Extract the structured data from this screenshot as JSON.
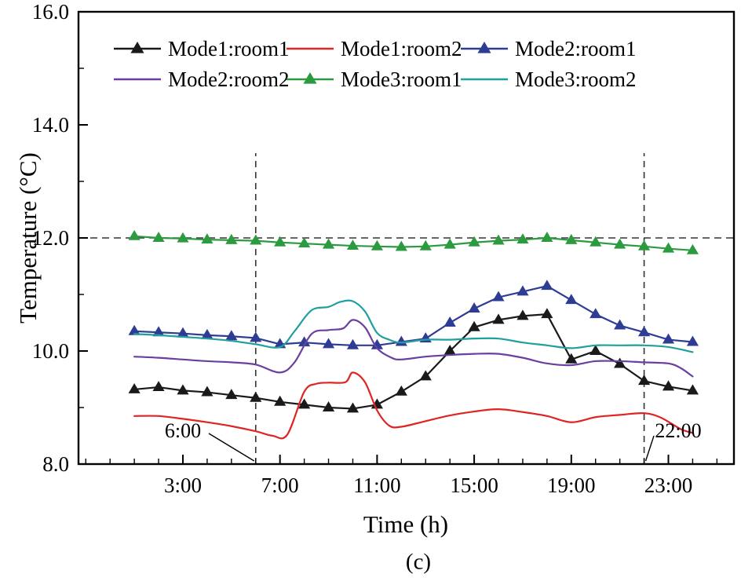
{
  "caption": "(c)",
  "colors": {
    "axis": "#000000",
    "reference_dash": "#333333",
    "mode1_room1": "#1a1a1a",
    "mode1_room2": "#e02424",
    "mode2_room1": "#2f3c94",
    "mode2_room2": "#6a3fa0",
    "mode3_room1": "#2c9b3f",
    "mode3_room2": "#1f9f9f"
  },
  "chart_data": {
    "type": "line",
    "title": "",
    "xlabel": "Time (h)",
    "ylabel": "Temperature (°C)",
    "xlim": [
      -1.3,
      25.7
    ],
    "ylim": [
      8,
      16
    ],
    "grid": false,
    "legend_position": "top-inside-two-rows",
    "x_major_ticks": [
      {
        "value": 3,
        "label": "3:00"
      },
      {
        "value": 7,
        "label": "7:00"
      },
      {
        "value": 11,
        "label": "11:00"
      },
      {
        "value": 15,
        "label": "15:00"
      },
      {
        "value": 19,
        "label": "19:00"
      },
      {
        "value": 23,
        "label": "23:00"
      }
    ],
    "x_minor_step": 1,
    "y_major_ticks": [
      {
        "value": 8,
        "label": "8.0"
      },
      {
        "value": 10,
        "label": "10.0"
      },
      {
        "value": 12,
        "label": "12.0"
      },
      {
        "value": 14,
        "label": "14.0"
      },
      {
        "value": 16,
        "label": "16.0"
      }
    ],
    "y_minor_step": 1,
    "reference_lines": {
      "horizontal": [
        {
          "y": 12.0
        }
      ],
      "vertical": [
        {
          "x": 6,
          "y_bottom": 8.0,
          "y_top": 13.5
        },
        {
          "x": 22,
          "y_bottom": 8.0,
          "y_top": 13.5
        }
      ]
    },
    "annotations": [
      {
        "text": "6:00",
        "target_hour": 6
      },
      {
        "text": "22:00",
        "target_hour": 22
      }
    ],
    "series": [
      {
        "name": "Mode1:room1",
        "color_key": "mode1_room1",
        "marker": "triangle",
        "smooth": false,
        "x": [
          1,
          2,
          3,
          4,
          5,
          6,
          7,
          8,
          9,
          10,
          11,
          12,
          13,
          14,
          15,
          16,
          17,
          18,
          19,
          20,
          21,
          22,
          23,
          24
        ],
        "y": [
          9.32,
          9.36,
          9.3,
          9.27,
          9.22,
          9.17,
          9.1,
          9.05,
          9.0,
          8.98,
          9.05,
          9.28,
          9.55,
          10.0,
          10.42,
          10.55,
          10.62,
          10.65,
          9.85,
          10.0,
          9.77,
          9.47,
          9.37,
          9.3
        ]
      },
      {
        "name": "Mode1:room2",
        "color_key": "mode1_room2",
        "marker": "none",
        "smooth": true,
        "x": [
          1,
          2,
          3,
          4,
          5,
          6,
          6.7,
          7.3,
          8,
          8.5,
          9,
          9.7,
          10,
          10.5,
          11,
          11.5,
          12,
          13,
          14,
          15,
          16,
          17,
          18,
          19,
          20,
          21,
          22,
          22.7,
          23.5,
          24
        ],
        "y": [
          8.85,
          8.85,
          8.8,
          8.74,
          8.67,
          8.58,
          8.5,
          8.52,
          9.28,
          9.42,
          9.44,
          9.45,
          9.62,
          9.45,
          8.95,
          8.68,
          8.66,
          8.76,
          8.86,
          8.93,
          8.97,
          8.92,
          8.85,
          8.74,
          8.83,
          8.87,
          8.9,
          8.82,
          8.62,
          8.55
        ]
      },
      {
        "name": "Mode2:room1",
        "color_key": "mode2_room1",
        "marker": "triangle",
        "smooth": false,
        "x": [
          1,
          2,
          3,
          4,
          5,
          6,
          7,
          8,
          9,
          10,
          11,
          12,
          13,
          14,
          15,
          16,
          17,
          18,
          19,
          20,
          21,
          22,
          23,
          24
        ],
        "y": [
          10.35,
          10.33,
          10.31,
          10.28,
          10.26,
          10.23,
          10.12,
          10.15,
          10.12,
          10.1,
          10.1,
          10.16,
          10.22,
          10.5,
          10.75,
          10.95,
          11.05,
          11.15,
          10.9,
          10.65,
          10.45,
          10.33,
          10.2,
          10.16
        ]
      },
      {
        "name": "Mode2:room2",
        "color_key": "mode2_room2",
        "marker": "none",
        "smooth": true,
        "x": [
          1,
          2,
          3,
          4,
          5,
          6,
          7,
          7.6,
          8.3,
          9,
          9.6,
          10,
          10.5,
          11,
          11.6,
          12,
          13,
          14,
          15,
          16,
          17,
          18,
          19,
          20,
          21,
          22,
          23,
          23.5,
          24
        ],
        "y": [
          9.9,
          9.88,
          9.85,
          9.82,
          9.8,
          9.76,
          9.62,
          9.8,
          10.3,
          10.37,
          10.4,
          10.55,
          10.42,
          10.05,
          9.88,
          9.85,
          9.9,
          9.93,
          9.95,
          9.95,
          9.88,
          9.78,
          9.75,
          9.82,
          9.82,
          9.8,
          9.78,
          9.7,
          9.55
        ]
      },
      {
        "name": "Mode3:room1",
        "color_key": "mode3_room1",
        "marker": "triangle",
        "smooth": false,
        "x": [
          1,
          2,
          3,
          4,
          5,
          6,
          7,
          8,
          9,
          10,
          11,
          12,
          13,
          14,
          15,
          16,
          17,
          18,
          19,
          20,
          21,
          22,
          23,
          24
        ],
        "y": [
          12.03,
          12.0,
          11.99,
          11.97,
          11.96,
          11.95,
          11.92,
          11.9,
          11.88,
          11.86,
          11.85,
          11.84,
          11.85,
          11.88,
          11.92,
          11.95,
          11.97,
          12.0,
          11.96,
          11.92,
          11.88,
          11.85,
          11.81,
          11.78
        ]
      },
      {
        "name": "Mode3:room2",
        "color_key": "mode3_room2",
        "marker": "none",
        "smooth": true,
        "x": [
          1,
          2,
          3,
          4,
          5,
          6,
          7,
          7.6,
          8.3,
          9,
          9.5,
          10,
          10.5,
          11,
          11.5,
          12,
          13,
          14,
          15,
          16,
          17,
          18,
          19,
          20,
          21,
          22,
          23,
          24
        ],
        "y": [
          10.3,
          10.28,
          10.25,
          10.22,
          10.18,
          10.12,
          10.07,
          10.35,
          10.72,
          10.78,
          10.87,
          10.88,
          10.7,
          10.32,
          10.2,
          10.15,
          10.2,
          10.2,
          10.22,
          10.22,
          10.15,
          10.1,
          10.05,
          10.1,
          10.1,
          10.1,
          10.07,
          9.98
        ]
      }
    ]
  }
}
